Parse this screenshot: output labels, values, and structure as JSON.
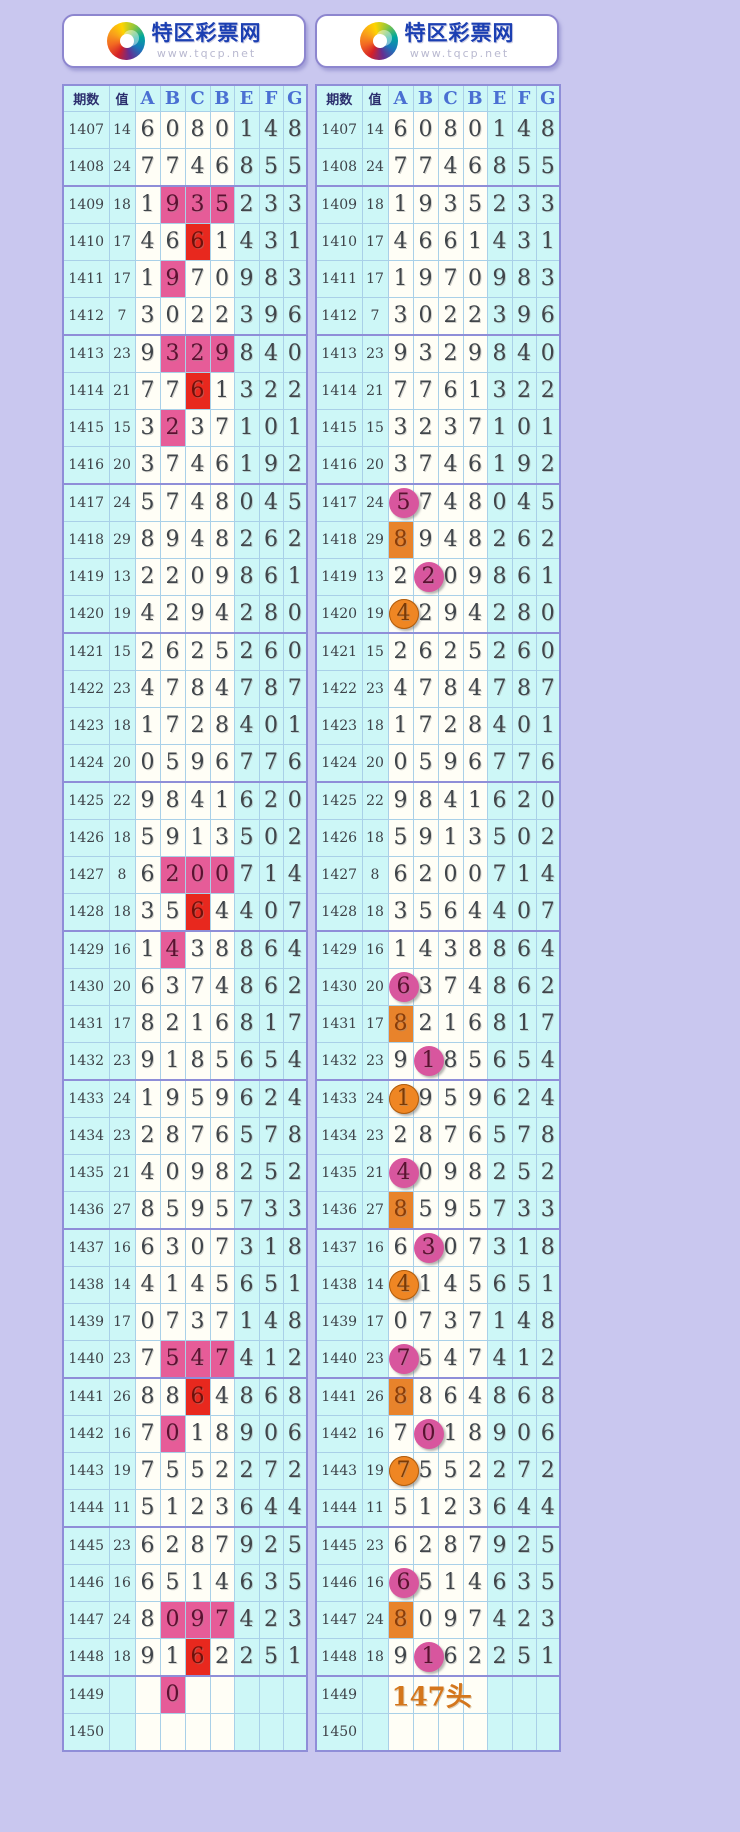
{
  "site": {
    "name": "特区彩票网",
    "url": "www.tqcp.net"
  },
  "columns": [
    "期数",
    "值",
    "A",
    "B",
    "C",
    "B",
    "E",
    "F",
    "G"
  ],
  "rows": [
    [
      "1407",
      "14",
      "6",
      "0",
      "8",
      "0",
      "1",
      "4",
      "8"
    ],
    [
      "1408",
      "24",
      "7",
      "7",
      "4",
      "6",
      "8",
      "5",
      "5"
    ],
    [
      "1409",
      "18",
      "1",
      "9",
      "3",
      "5",
      "2",
      "3",
      "3"
    ],
    [
      "1410",
      "17",
      "4",
      "6",
      "6",
      "1",
      "4",
      "3",
      "1"
    ],
    [
      "1411",
      "17",
      "1",
      "9",
      "7",
      "0",
      "9",
      "8",
      "3"
    ],
    [
      "1412",
      "7",
      "3",
      "0",
      "2",
      "2",
      "3",
      "9",
      "6"
    ],
    [
      "1413",
      "23",
      "9",
      "3",
      "2",
      "9",
      "8",
      "4",
      "0"
    ],
    [
      "1414",
      "21",
      "7",
      "7",
      "6",
      "1",
      "3",
      "2",
      "2"
    ],
    [
      "1415",
      "15",
      "3",
      "2",
      "3",
      "7",
      "1",
      "0",
      "1"
    ],
    [
      "1416",
      "20",
      "3",
      "7",
      "4",
      "6",
      "1",
      "9",
      "2"
    ],
    [
      "1417",
      "24",
      "5",
      "7",
      "4",
      "8",
      "0",
      "4",
      "5"
    ],
    [
      "1418",
      "29",
      "8",
      "9",
      "4",
      "8",
      "2",
      "6",
      "2"
    ],
    [
      "1419",
      "13",
      "2",
      "2",
      "0",
      "9",
      "8",
      "6",
      "1"
    ],
    [
      "1420",
      "19",
      "4",
      "2",
      "9",
      "4",
      "2",
      "8",
      "0"
    ],
    [
      "1421",
      "15",
      "2",
      "6",
      "2",
      "5",
      "2",
      "6",
      "0"
    ],
    [
      "1422",
      "23",
      "4",
      "7",
      "8",
      "4",
      "7",
      "8",
      "7"
    ],
    [
      "1423",
      "18",
      "1",
      "7",
      "2",
      "8",
      "4",
      "0",
      "1"
    ],
    [
      "1424",
      "20",
      "0",
      "5",
      "9",
      "6",
      "7",
      "7",
      "6"
    ],
    [
      "1425",
      "22",
      "9",
      "8",
      "4",
      "1",
      "6",
      "2",
      "0"
    ],
    [
      "1426",
      "18",
      "5",
      "9",
      "1",
      "3",
      "5",
      "0",
      "2"
    ],
    [
      "1427",
      "8",
      "6",
      "2",
      "0",
      "0",
      "7",
      "1",
      "4"
    ],
    [
      "1428",
      "18",
      "3",
      "5",
      "6",
      "4",
      "4",
      "0",
      "7"
    ],
    [
      "1429",
      "16",
      "1",
      "4",
      "3",
      "8",
      "8",
      "6",
      "4"
    ],
    [
      "1430",
      "20",
      "6",
      "3",
      "7",
      "4",
      "8",
      "6",
      "2"
    ],
    [
      "1431",
      "17",
      "8",
      "2",
      "1",
      "6",
      "8",
      "1",
      "7"
    ],
    [
      "1432",
      "23",
      "9",
      "1",
      "8",
      "5",
      "6",
      "5",
      "4"
    ],
    [
      "1433",
      "24",
      "1",
      "9",
      "5",
      "9",
      "6",
      "2",
      "4"
    ],
    [
      "1434",
      "23",
      "2",
      "8",
      "7",
      "6",
      "5",
      "7",
      "8"
    ],
    [
      "1435",
      "21",
      "4",
      "0",
      "9",
      "8",
      "2",
      "5",
      "2"
    ],
    [
      "1436",
      "27",
      "8",
      "5",
      "9",
      "5",
      "7",
      "3",
      "3"
    ],
    [
      "1437",
      "16",
      "6",
      "3",
      "0",
      "7",
      "3",
      "1",
      "8"
    ],
    [
      "1438",
      "14",
      "4",
      "1",
      "4",
      "5",
      "6",
      "5",
      "1"
    ],
    [
      "1439",
      "17",
      "0",
      "7",
      "3",
      "7",
      "1",
      "4",
      "8"
    ],
    [
      "1440",
      "23",
      "7",
      "5",
      "4",
      "7",
      "4",
      "1",
      "2"
    ],
    [
      "1441",
      "26",
      "8",
      "8",
      "6",
      "4",
      "8",
      "6",
      "8"
    ],
    [
      "1442",
      "16",
      "7",
      "0",
      "1",
      "8",
      "9",
      "0",
      "6"
    ],
    [
      "1443",
      "19",
      "7",
      "5",
      "5",
      "2",
      "2",
      "7",
      "2"
    ],
    [
      "1444",
      "11",
      "5",
      "1",
      "2",
      "3",
      "6",
      "4",
      "4"
    ],
    [
      "1445",
      "23",
      "6",
      "2",
      "8",
      "7",
      "9",
      "2",
      "5"
    ],
    [
      "1446",
      "16",
      "6",
      "5",
      "1",
      "4",
      "6",
      "3",
      "5"
    ],
    [
      "1447",
      "24",
      "8",
      "0",
      "9",
      "7",
      "4",
      "2",
      "3"
    ],
    [
      "1448",
      "18",
      "9",
      "1",
      "6",
      "2",
      "2",
      "5",
      "1"
    ],
    [
      "1449",
      "",
      "",
      "0",
      "",
      "",
      "",
      "",
      ""
    ],
    [
      "1450",
      "",
      "",
      "",
      "",
      "",
      "",
      "",
      ""
    ]
  ],
  "left_highlights": {
    "1409:1": "pink",
    "1409:2": "pink",
    "1409:3": "pink",
    "1410:2": "red",
    "1411:1": "pink",
    "1413:1": "pink",
    "1413:2": "pink",
    "1413:3": "pink",
    "1414:2": "red",
    "1415:1": "pink",
    "1427:1": "pink",
    "1427:2": "pink",
    "1427:3": "pink",
    "1428:2": "red",
    "1429:1": "pink",
    "1440:1": "pink",
    "1440:2": "pink",
    "1440:3": "pink",
    "1441:2": "red",
    "1442:1": "pink",
    "1447:1": "pink",
    "1447:2": "pink",
    "1447:3": "pink",
    "1448:2": "red",
    "1449:1": "pink"
  },
  "right_highlights": {
    "1417:0": "circle-pink",
    "1418:0": "square-orange",
    "1419:1": "circle-pink",
    "1420:0": "circle-orange",
    "1430:0": "circle-pink",
    "1431:0": "square-orange",
    "1432:1": "circle-pink",
    "1433:0": "circle-orange",
    "1435:0": "circle-pink",
    "1436:0": "square-orange",
    "1437:1": "circle-pink",
    "1438:0": "circle-orange",
    "1440:0": "circle-pink",
    "1441:0": "square-orange",
    "1442:1": "circle-pink",
    "1443:0": "circle-orange",
    "1446:0": "circle-pink",
    "1447:0": "square-orange",
    "1448:1": "circle-pink"
  },
  "right_note": {
    "period": "1449",
    "text": "147头"
  },
  "colors": {
    "page_bg": "#c9c7ef",
    "cell_cyan": "#cdf7f7",
    "grid_blue": "#a9d0e8",
    "grid_purple": "#8f8ed8",
    "title_blue": "#1b3fb2",
    "highlight_pink": "#e65c98",
    "highlight_red": "#e8281e",
    "highlight_orange_square": "#e8832b",
    "circle_pink": "#d8569e",
    "circle_orange": "#ef8623",
    "note_text": "#d4761c"
  }
}
